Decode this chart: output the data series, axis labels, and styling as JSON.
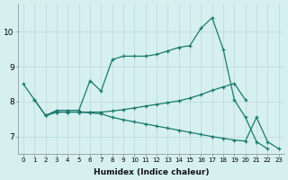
{
  "xlabel": "Humidex (Indice chaleur)",
  "bg_color": "#d6f0f0",
  "grid_color": "#b8d8d8",
  "line_color": "#1a7a6e",
  "xlim": [
    -0.5,
    23.5
  ],
  "ylim": [
    6.5,
    10.8
  ],
  "xticks": [
    0,
    1,
    2,
    3,
    4,
    5,
    6,
    7,
    8,
    9,
    10,
    11,
    12,
    13,
    14,
    15,
    16,
    17,
    18,
    19,
    20,
    21,
    22,
    23
  ],
  "yticks": [
    7,
    8,
    9,
    10
  ],
  "line1_x": [
    0,
    1,
    2,
    3,
    4,
    5,
    6,
    7,
    8,
    9,
    10,
    11,
    12,
    13,
    14,
    15,
    16,
    17,
    18,
    19,
    20,
    21,
    22,
    23
  ],
  "line1_y": [
    8.5,
    8.05,
    7.6,
    7.75,
    7.75,
    7.75,
    8.6,
    8.3,
    9.2,
    9.3,
    9.3,
    9.3,
    9.35,
    9.45,
    9.55,
    9.6,
    10.1,
    10.4,
    9.5,
    8.05,
    7.55,
    6.85,
    6.65,
    null
  ],
  "line2_x": [
    0,
    1,
    2,
    3,
    4,
    5,
    6,
    7,
    8,
    9,
    10,
    11,
    12,
    13,
    14,
    15,
    16,
    17,
    18,
    19,
    20,
    21,
    22,
    23
  ],
  "line2_y": [
    null,
    8.05,
    7.6,
    7.7,
    7.7,
    7.7,
    7.7,
    7.7,
    7.73,
    7.77,
    7.82,
    7.87,
    7.92,
    7.97,
    8.02,
    8.1,
    8.2,
    8.32,
    8.42,
    8.52,
    8.05,
    null,
    null,
    null
  ],
  "line3_x": [
    0,
    1,
    2,
    3,
    4,
    5,
    6,
    7,
    8,
    9,
    10,
    11,
    12,
    13,
    14,
    15,
    16,
    17,
    18,
    19,
    20,
    21,
    22,
    23
  ],
  "line3_y": [
    null,
    null,
    7.6,
    7.7,
    7.7,
    7.7,
    7.68,
    7.65,
    7.55,
    7.48,
    7.42,
    7.36,
    7.3,
    7.24,
    7.18,
    7.12,
    7.06,
    7.0,
    6.95,
    6.9,
    6.87,
    7.55,
    6.85,
    6.65
  ]
}
